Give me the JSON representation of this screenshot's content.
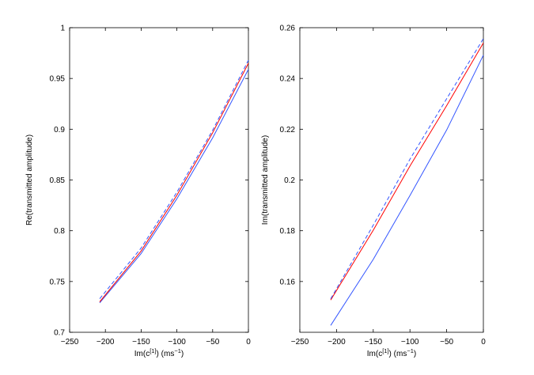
{
  "chart_data": [
    {
      "type": "line",
      "xlabel": "Im(c",
      "xlabel_sup": "[1]",
      "xlabel_tail": ") (ms",
      "xlabel_unit_sup": "−1",
      "xlabel_close": ")",
      "ylabel": "Re(transmitted amplitude)",
      "xlim": [
        -250,
        0
      ],
      "ylim": [
        0.7,
        1
      ],
      "xticks": [
        -250,
        -200,
        -150,
        -100,
        -50,
        0
      ],
      "xtick_labels": [
        "−250",
        "−200",
        "−150",
        "−100",
        "−50",
        "0"
      ],
      "yticks": [
        0.7,
        0.75,
        0.8,
        0.85,
        0.9,
        0.95,
        1
      ],
      "ytick_labels": [
        "0.7",
        "0.75",
        "0.8",
        "0.85",
        "0.9",
        "0.95",
        "1"
      ],
      "grid": false,
      "series": [
        {
          "color": "#3355ff",
          "dash": "solid",
          "x": [
            -208,
            -150,
            -100,
            -50,
            0
          ],
          "y": [
            0.729,
            0.7775,
            0.8315,
            0.8915,
            0.959
          ]
        },
        {
          "color": "#ff0000",
          "dash": "solid",
          "x": [
            -208,
            -150,
            -100,
            -50,
            0
          ],
          "y": [
            0.73,
            0.78,
            0.835,
            0.8965,
            0.965
          ]
        },
        {
          "color": "#3355ff",
          "dash": "dashed",
          "x": [
            -208,
            -150,
            -100,
            -50,
            0
          ],
          "y": [
            0.733,
            0.783,
            0.838,
            0.899,
            0.968
          ]
        }
      ]
    },
    {
      "type": "line",
      "xlabel": "Im(c",
      "xlabel_sup": "[1]",
      "xlabel_tail": ") (ms",
      "xlabel_unit_sup": "−1",
      "xlabel_close": ")",
      "ylabel": "Im(transmitted amplitude)",
      "xlim": [
        -250,
        0
      ],
      "ylim": [
        0.14,
        0.26
      ],
      "xticks": [
        -250,
        -200,
        -150,
        -100,
        -50,
        0
      ],
      "xtick_labels": [
        "−250",
        "−200",
        "−150",
        "−100",
        "−50",
        "0"
      ],
      "yticks": [
        0.16,
        0.18,
        0.2,
        0.22,
        0.24,
        0.26
      ],
      "ytick_labels": [
        "0.16",
        "0.18",
        "0.2",
        "0.22",
        "0.24",
        "0.26"
      ],
      "grid": false,
      "series": [
        {
          "color": "#3355ff",
          "dash": "solid",
          "x": [
            -208,
            -150,
            -100,
            -50,
            0
          ],
          "y": [
            0.1427,
            0.1687,
            0.1939,
            0.2197,
            0.2492
          ]
        },
        {
          "color": "#ff0000",
          "dash": "solid",
          "x": [
            -208,
            -150,
            -100,
            -50,
            0
          ],
          "y": [
            0.1527,
            0.1802,
            0.2055,
            0.2293,
            0.254
          ]
        },
        {
          "color": "#3355ff",
          "dash": "dashed",
          "x": [
            -208,
            -150,
            -100,
            -50,
            0
          ],
          "y": [
            0.1532,
            0.1822,
            0.2082,
            0.232,
            0.2557
          ]
        }
      ]
    }
  ]
}
